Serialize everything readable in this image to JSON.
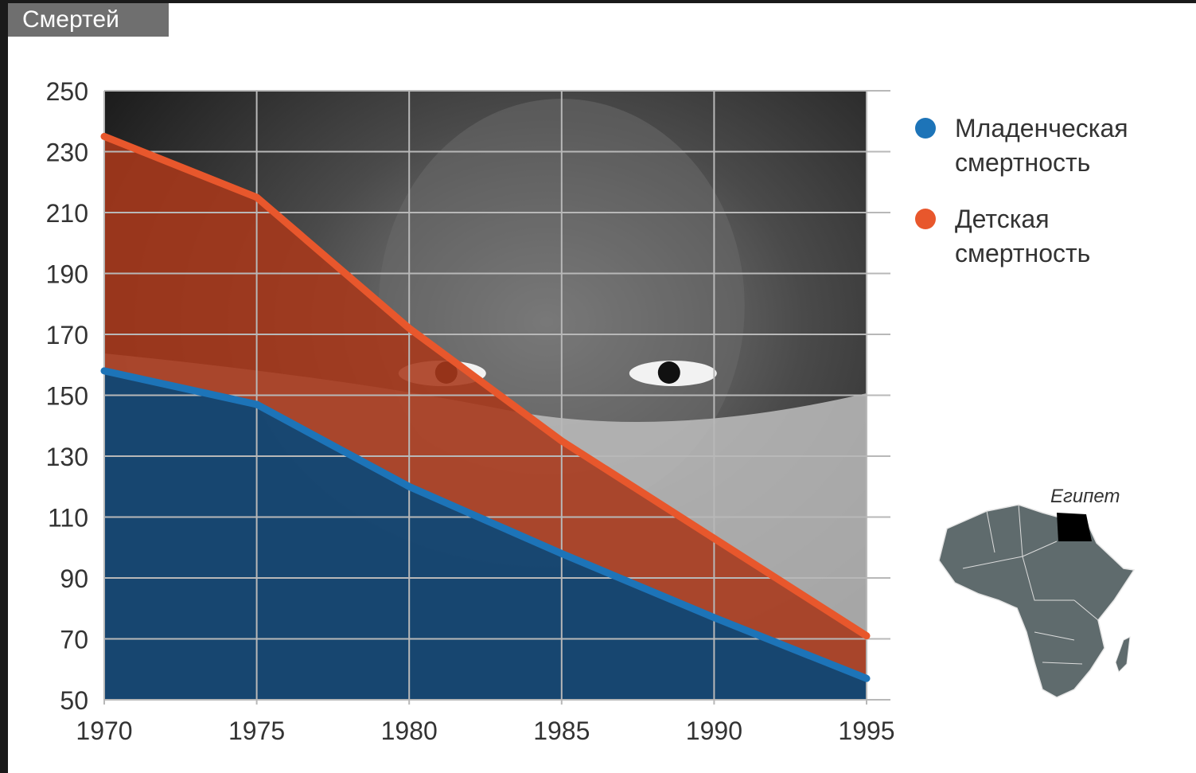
{
  "header": {
    "title": "Смертей"
  },
  "legend": [
    {
      "label": "Младенческая смертность",
      "color": "#1d74b8"
    },
    {
      "label": "Детская смертность",
      "color": "#e8572c"
    }
  ],
  "map": {
    "label": "Египет",
    "highlight_country": "Egypt",
    "region": "Africa"
  },
  "colors": {
    "infant": "#1d74b8",
    "child": "#e8572c",
    "infant_fill": "#0b3e6b",
    "child_fill": "#a9381a",
    "grid": "#b8b8b8"
  },
  "chart_data": {
    "type": "area",
    "title": "Смертей",
    "x": [
      1970,
      1975,
      1980,
      1985,
      1990,
      1995
    ],
    "xlim": [
      1970,
      1995
    ],
    "ylim": [
      50,
      250
    ],
    "yticks": [
      50,
      70,
      90,
      110,
      130,
      150,
      170,
      190,
      210,
      230,
      250
    ],
    "xticks": [
      1970,
      1975,
      1980,
      1985,
      1990,
      1995
    ],
    "grid": true,
    "legend_position": "top-right",
    "series": [
      {
        "name": "Младенческая смертность",
        "values": [
          158,
          147,
          120,
          98,
          77,
          57
        ]
      },
      {
        "name": "Детская смертность",
        "values": [
          235,
          215,
          172,
          135,
          103,
          71
        ]
      }
    ]
  }
}
